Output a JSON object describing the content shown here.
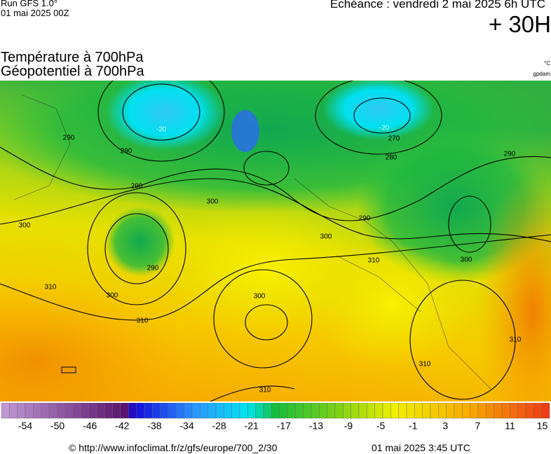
{
  "header": {
    "run": "Run GFS 1.0°",
    "run_date": "01 mai 2025 00Z",
    "valid": "Echéance : vendredi 2 mai 2025 6h UTC",
    "lead": "+ 30H",
    "title1": "Température à 700hPa",
    "title2": "Géopotentiel à 700hPa",
    "unit1": "°C",
    "unit2": "gpdam"
  },
  "contour_labels": [
    290,
    290,
    290,
    290,
    300,
    300,
    300,
    300,
    300,
    300,
    310,
    310,
    310,
    310,
    310,
    310,
    270,
    280,
    290,
    290,
    -20,
    -20
  ],
  "colorbar": {
    "labels": [
      -54,
      -50,
      -46,
      -42,
      -38,
      -34,
      -28,
      -21,
      -17,
      -13,
      -9,
      -5,
      -1,
      3,
      7,
      11,
      15
    ]
  },
  "footer": {
    "source": "© http://www.infoclimat.fr/z/gfs/europe/700_2/30",
    "issued": "01 mai 2025  3:45 UTC"
  }
}
